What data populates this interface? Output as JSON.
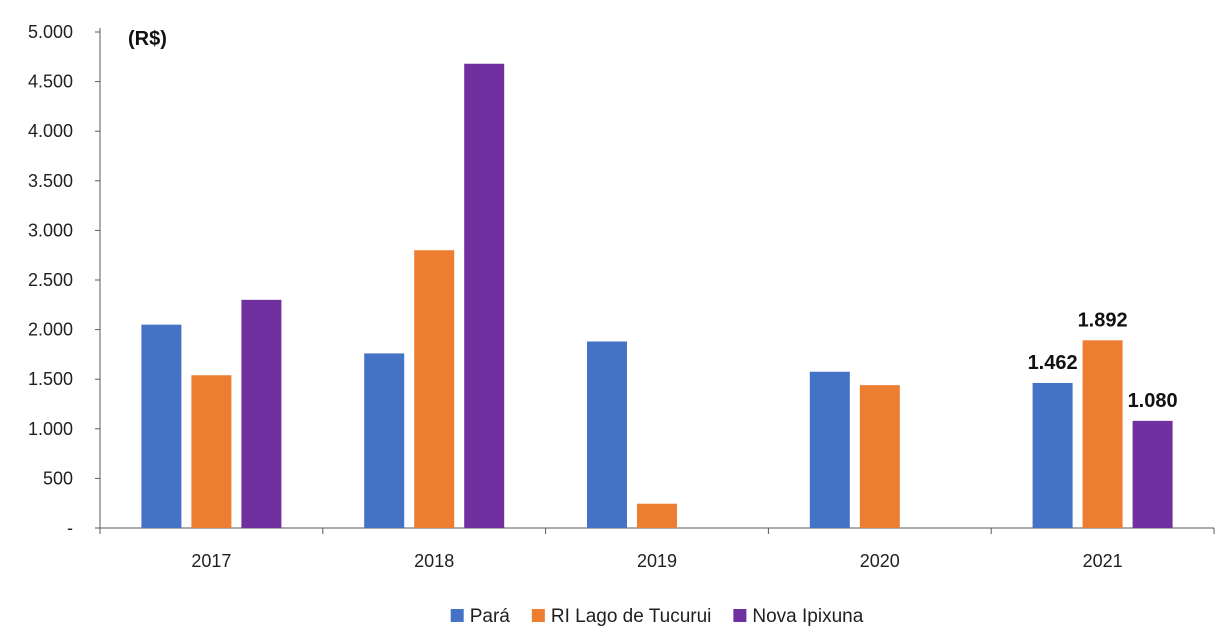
{
  "chart_data": {
    "type": "bar",
    "unit_label": "(R$)",
    "categories": [
      "2017",
      "2018",
      "2019",
      "2020",
      "2021"
    ],
    "series": [
      {
        "name": "Pará",
        "color": "#4472C4",
        "values": [
          2050,
          1760,
          1880,
          1575,
          1462
        ]
      },
      {
        "name": "RI Lago de Tucurui",
        "color": "#ED7D31",
        "values": [
          1540,
          2800,
          245,
          1440,
          1892
        ]
      },
      {
        "name": "Nova Ipixuna",
        "color": "#7030A0",
        "values": [
          2300,
          4680,
          null,
          null,
          1080
        ]
      }
    ],
    "ylim": [
      0,
      5000
    ],
    "y_ticks": [
      {
        "value": 0,
        "label": "-"
      },
      {
        "value": 500,
        "label": "500"
      },
      {
        "value": 1000,
        "label": "1.000"
      },
      {
        "value": 1500,
        "label": "1.500"
      },
      {
        "value": 2000,
        "label": "2.000"
      },
      {
        "value": 2500,
        "label": "2.500"
      },
      {
        "value": 3000,
        "label": "3.000"
      },
      {
        "value": 3500,
        "label": "3.500"
      },
      {
        "value": 4000,
        "label": "4.000"
      },
      {
        "value": 4500,
        "label": "4.500"
      },
      {
        "value": 5000,
        "label": "5.000"
      }
    ],
    "data_labels": [
      {
        "category": "2021",
        "series": "Pará",
        "text": "1.462"
      },
      {
        "category": "2021",
        "series": "RI Lago de Tucurui",
        "text": "1.892"
      },
      {
        "category": "2021",
        "series": "Nova Ipixuna",
        "text": "1.080"
      }
    ],
    "grid": false,
    "legend_position": "bottom-center"
  }
}
